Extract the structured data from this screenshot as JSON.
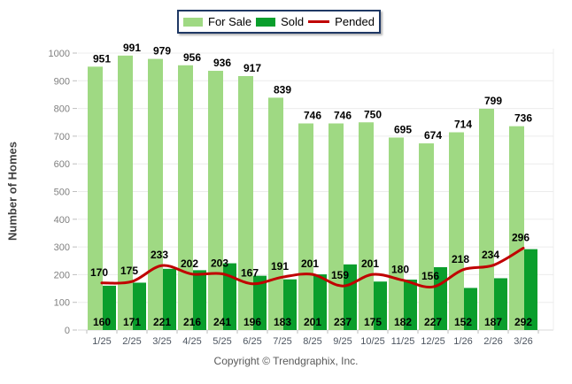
{
  "legend": {
    "items": [
      {
        "label": "For Sale",
        "color": "#9fd983",
        "swatch": "box"
      },
      {
        "label": "Sold",
        "color": "#0a9e2c",
        "swatch": "box"
      },
      {
        "label": "Pended",
        "color": "#c00000",
        "swatch": "line"
      }
    ],
    "border_color": "#1f3864"
  },
  "y_axis": {
    "title": "Number of Homes",
    "tick_labels": [
      "0",
      "100",
      "200",
      "300",
      "400",
      "500",
      "600",
      "700",
      "800",
      "900",
      "1000"
    ]
  },
  "footer": {
    "copyright": "Copyright © Trendgraphix, Inc."
  },
  "chart_data": {
    "type": "bar",
    "title": "",
    "xlabel": "",
    "ylabel": "Number of Homes",
    "ylim": [
      0,
      1000
    ],
    "y_tick_step": 100,
    "grid": true,
    "legend_position": "top-center",
    "categories": [
      "1/25",
      "2/25",
      "3/25",
      "4/25",
      "5/25",
      "6/25",
      "7/25",
      "8/25",
      "9/25",
      "10/25",
      "11/25",
      "12/25",
      "1/26",
      "2/26",
      "3/26"
    ],
    "series": [
      {
        "name": "For Sale",
        "render": "bar",
        "color": "#9fd983",
        "values": [
          951,
          991,
          979,
          956,
          936,
          917,
          839,
          746,
          746,
          750,
          695,
          674,
          714,
          799,
          736
        ]
      },
      {
        "name": "Sold",
        "render": "bar",
        "color": "#0a9e2c",
        "values": [
          160,
          171,
          221,
          216,
          241,
          196,
          183,
          201,
          237,
          175,
          182,
          227,
          152,
          187,
          292
        ]
      },
      {
        "name": "Pended",
        "render": "line",
        "color": "#c00000",
        "values": [
          170,
          175,
          233,
          202,
          203,
          167,
          191,
          201,
          159,
          201,
          180,
          156,
          218,
          234,
          296
        ]
      }
    ],
    "colors": {
      "gridline": "#ececec",
      "axis_line": "#d9d9d9",
      "tick_mark": "#bfbfbf",
      "y_tick_text": "#808080",
      "x_tick_text": "#4d5560",
      "data_label_text": "#000000"
    }
  }
}
